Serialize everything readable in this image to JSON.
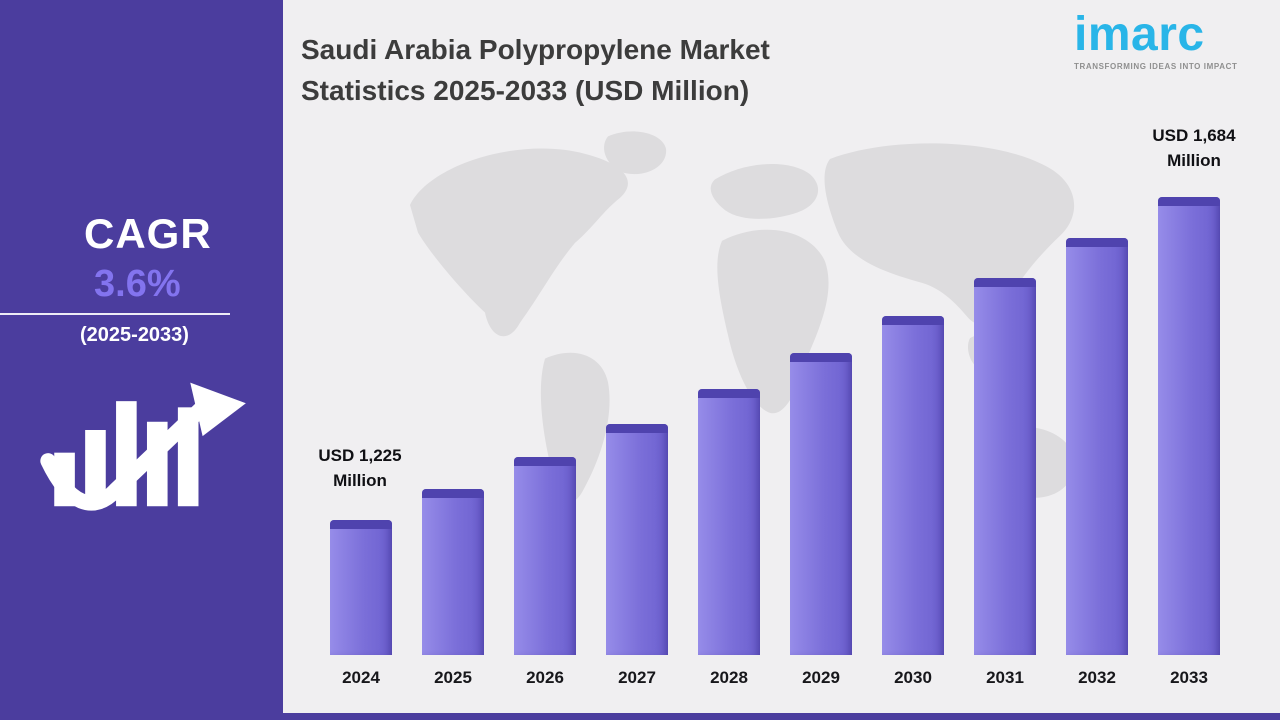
{
  "sidebar": {
    "cagr_label": "CAGR",
    "cagr_value": "3.6%",
    "period": "(2025-2033)"
  },
  "header": {
    "title_line1": "Saudi Arabia Polypropylene Market",
    "title_line2": "Statistics 2025-2033 (USD Million)"
  },
  "logo": {
    "text": "imarc",
    "tagline": "TRANSFORMING IDEAS INTO IMPACT"
  },
  "annotations": {
    "first": {
      "line1": "USD 1,225",
      "line2": "Million"
    },
    "last": {
      "line1": "USD 1,684",
      "line2": "Million"
    }
  },
  "colors": {
    "sidebar_bg": "#4b3d9e",
    "bar_body": "#7b6fd9",
    "bar_cap": "#4f43ae",
    "logo_cyan": "#29b5e8",
    "panel_bg": "#f0eff1",
    "cagr_value_color": "#8374ef"
  },
  "chart_data": {
    "type": "bar",
    "title": "Saudi Arabia Polypropylene Market Statistics 2025-2033 (USD Million)",
    "categories": [
      "2024",
      "2025",
      "2026",
      "2027",
      "2028",
      "2029",
      "2030",
      "2031",
      "2032",
      "2033"
    ],
    "values": [
      1225,
      1269,
      1315,
      1362,
      1411,
      1462,
      1515,
      1569,
      1626,
      1684
    ],
    "unit": "USD Million",
    "cagr": "3.6%",
    "cagr_period": "2025-2033",
    "first_bar_label": "USD 1,225 Million",
    "last_bar_label": "USD 1,684 Million",
    "xlabel": "",
    "ylabel": "USD Million",
    "ylim": [
      1100,
      1750
    ],
    "grid": false,
    "legend": false
  }
}
